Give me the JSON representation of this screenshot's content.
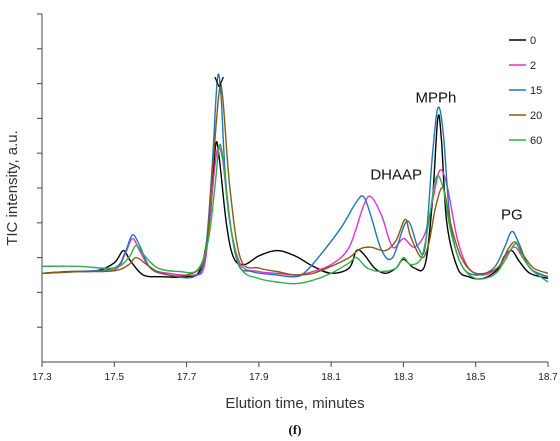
{
  "chart_data": {
    "type": "line",
    "xlabel": "Elution time, minutes",
    "ylabel": "TIC intensity, a.u.",
    "xlim": [
      17.3,
      18.7
    ],
    "x_ticks": [
      "17.3",
      "17.5",
      "17.7",
      "17.9",
      "18.1",
      "18.3",
      "18.5",
      "18.7"
    ],
    "ylim": [
      0,
      10
    ],
    "y_tick_count": 10,
    "panel_label": "(f)",
    "legend_position": "top-right",
    "annotations": [
      {
        "text": "V",
        "x": 17.79,
        "y": 7.9
      },
      {
        "text": "DHAAP",
        "x": 18.28,
        "y": 5.25
      },
      {
        "text": "MPPh",
        "x": 18.39,
        "y": 7.45
      },
      {
        "text": "PG",
        "x": 18.6,
        "y": 4.1
      }
    ],
    "series": [
      {
        "name": "0",
        "color": "#000000",
        "points": [
          [
            17.3,
            2.55
          ],
          [
            17.38,
            2.6
          ],
          [
            17.45,
            2.62
          ],
          [
            17.5,
            2.85
          ],
          [
            17.525,
            3.2
          ],
          [
            17.545,
            2.9
          ],
          [
            17.58,
            2.5
          ],
          [
            17.63,
            2.45
          ],
          [
            17.7,
            2.45
          ],
          [
            17.74,
            2.7
          ],
          [
            17.765,
            4.2
          ],
          [
            17.78,
            6.2
          ],
          [
            17.79,
            5.9
          ],
          [
            17.81,
            4.0
          ],
          [
            17.83,
            3.0
          ],
          [
            17.86,
            2.8
          ],
          [
            17.9,
            3.05
          ],
          [
            17.95,
            3.2
          ],
          [
            18.0,
            3.05
          ],
          [
            18.05,
            2.75
          ],
          [
            18.1,
            2.55
          ],
          [
            18.15,
            2.7
          ],
          [
            18.17,
            3.2
          ],
          [
            18.19,
            3.1
          ],
          [
            18.22,
            2.7
          ],
          [
            18.25,
            2.55
          ],
          [
            18.28,
            2.7
          ],
          [
            18.3,
            2.95
          ],
          [
            18.33,
            2.7
          ],
          [
            18.36,
            2.8
          ],
          [
            18.38,
            4.6
          ],
          [
            18.395,
            7.0
          ],
          [
            18.405,
            6.4
          ],
          [
            18.42,
            4.0
          ],
          [
            18.45,
            2.7
          ],
          [
            18.48,
            2.45
          ],
          [
            18.52,
            2.4
          ],
          [
            18.56,
            2.65
          ],
          [
            18.58,
            3.05
          ],
          [
            18.6,
            3.2
          ],
          [
            18.62,
            2.9
          ],
          [
            18.65,
            2.55
          ],
          [
            18.7,
            2.4
          ]
        ]
      },
      {
        "name": "2",
        "color": "#E62ED1",
        "points": [
          [
            17.3,
            2.55
          ],
          [
            17.4,
            2.6
          ],
          [
            17.5,
            2.65
          ],
          [
            17.53,
            3.1
          ],
          [
            17.55,
            3.55
          ],
          [
            17.57,
            3.2
          ],
          [
            17.6,
            2.7
          ],
          [
            17.65,
            2.55
          ],
          [
            17.72,
            2.5
          ],
          [
            17.75,
            2.8
          ],
          [
            17.77,
            4.8
          ],
          [
            17.785,
            6.1
          ],
          [
            17.8,
            5.8
          ],
          [
            17.82,
            4.0
          ],
          [
            17.85,
            2.8
          ],
          [
            17.9,
            2.6
          ],
          [
            17.95,
            2.55
          ],
          [
            18.0,
            2.5
          ],
          [
            18.05,
            2.6
          ],
          [
            18.1,
            2.8
          ],
          [
            18.15,
            3.3
          ],
          [
            18.19,
            4.5
          ],
          [
            18.21,
            4.75
          ],
          [
            18.24,
            4.2
          ],
          [
            18.27,
            3.3
          ],
          [
            18.3,
            3.55
          ],
          [
            18.33,
            3.3
          ],
          [
            18.36,
            3.7
          ],
          [
            18.38,
            4.6
          ],
          [
            18.4,
            5.5
          ],
          [
            18.42,
            5.1
          ],
          [
            18.45,
            3.5
          ],
          [
            18.48,
            2.7
          ],
          [
            18.52,
            2.5
          ],
          [
            18.56,
            2.7
          ],
          [
            18.59,
            3.15
          ],
          [
            18.61,
            3.3
          ],
          [
            18.63,
            3.0
          ],
          [
            18.66,
            2.6
          ],
          [
            18.7,
            2.45
          ]
        ]
      },
      {
        "name": "15",
        "color": "#1F77B4",
        "points": [
          [
            17.3,
            2.55
          ],
          [
            17.4,
            2.6
          ],
          [
            17.5,
            2.7
          ],
          [
            17.53,
            3.15
          ],
          [
            17.55,
            3.65
          ],
          [
            17.57,
            3.35
          ],
          [
            17.6,
            2.7
          ],
          [
            17.65,
            2.5
          ],
          [
            17.72,
            2.45
          ],
          [
            17.75,
            3.0
          ],
          [
            17.77,
            5.5
          ],
          [
            17.785,
            8.1
          ],
          [
            17.795,
            7.7
          ],
          [
            17.81,
            5.0
          ],
          [
            17.84,
            2.9
          ],
          [
            17.88,
            2.6
          ],
          [
            17.95,
            2.5
          ],
          [
            18.0,
            2.45
          ],
          [
            18.03,
            2.6
          ],
          [
            18.08,
            3.2
          ],
          [
            18.13,
            3.9
          ],
          [
            18.17,
            4.6
          ],
          [
            18.19,
            4.75
          ],
          [
            18.21,
            4.2
          ],
          [
            18.24,
            3.2
          ],
          [
            18.27,
            3.0
          ],
          [
            18.31,
            4.05
          ],
          [
            18.34,
            3.3
          ],
          [
            18.36,
            3.3
          ],
          [
            18.38,
            5.9
          ],
          [
            18.395,
            7.3
          ],
          [
            18.41,
            6.6
          ],
          [
            18.43,
            4.0
          ],
          [
            18.46,
            2.8
          ],
          [
            18.5,
            2.5
          ],
          [
            18.55,
            2.7
          ],
          [
            18.58,
            3.3
          ],
          [
            18.6,
            3.75
          ],
          [
            18.62,
            3.4
          ],
          [
            18.65,
            2.7
          ],
          [
            18.7,
            2.45
          ]
        ]
      },
      {
        "name": "20",
        "color": "#8B5A10",
        "points": [
          [
            17.3,
            2.55
          ],
          [
            17.4,
            2.6
          ],
          [
            17.5,
            2.62
          ],
          [
            17.54,
            2.8
          ],
          [
            17.56,
            3.0
          ],
          [
            17.59,
            2.8
          ],
          [
            17.63,
            2.55
          ],
          [
            17.7,
            2.5
          ],
          [
            17.75,
            3.0
          ],
          [
            17.77,
            5.3
          ],
          [
            17.79,
            7.75
          ],
          [
            17.8,
            7.6
          ],
          [
            17.82,
            5.0
          ],
          [
            17.85,
            2.95
          ],
          [
            17.9,
            2.7
          ],
          [
            17.95,
            2.6
          ],
          [
            18.0,
            2.5
          ],
          [
            18.05,
            2.55
          ],
          [
            18.1,
            2.75
          ],
          [
            18.15,
            3.0
          ],
          [
            18.18,
            3.25
          ],
          [
            18.21,
            3.3
          ],
          [
            18.25,
            3.2
          ],
          [
            18.28,
            3.5
          ],
          [
            18.305,
            4.1
          ],
          [
            18.32,
            3.6
          ],
          [
            18.35,
            3.0
          ],
          [
            18.37,
            3.4
          ],
          [
            18.39,
            4.5
          ],
          [
            18.41,
            5.0
          ],
          [
            18.43,
            4.0
          ],
          [
            18.46,
            3.0
          ],
          [
            18.5,
            2.55
          ],
          [
            18.56,
            2.7
          ],
          [
            18.59,
            3.25
          ],
          [
            18.61,
            3.45
          ],
          [
            18.63,
            3.1
          ],
          [
            18.66,
            2.7
          ],
          [
            18.7,
            2.55
          ]
        ]
      },
      {
        "name": "60",
        "color": "#2CB04A",
        "points": [
          [
            17.3,
            2.75
          ],
          [
            17.4,
            2.75
          ],
          [
            17.5,
            2.7
          ],
          [
            17.54,
            3.0
          ],
          [
            17.56,
            3.35
          ],
          [
            17.58,
            3.1
          ],
          [
            17.62,
            2.7
          ],
          [
            17.68,
            2.6
          ],
          [
            17.73,
            2.65
          ],
          [
            17.76,
            3.5
          ],
          [
            17.78,
            5.2
          ],
          [
            17.79,
            6.2
          ],
          [
            17.8,
            5.9
          ],
          [
            17.82,
            4.0
          ],
          [
            17.85,
            2.7
          ],
          [
            17.9,
            2.4
          ],
          [
            17.95,
            2.3
          ],
          [
            18.0,
            2.25
          ],
          [
            18.05,
            2.35
          ],
          [
            18.1,
            2.55
          ],
          [
            18.15,
            2.85
          ],
          [
            18.17,
            3.0
          ],
          [
            18.2,
            2.7
          ],
          [
            18.24,
            2.6
          ],
          [
            18.28,
            2.7
          ],
          [
            18.3,
            3.0
          ],
          [
            18.32,
            2.8
          ],
          [
            18.35,
            3.0
          ],
          [
            18.37,
            4.0
          ],
          [
            18.39,
            5.3
          ],
          [
            18.41,
            5.0
          ],
          [
            18.43,
            3.8
          ],
          [
            18.46,
            2.8
          ],
          [
            18.5,
            2.4
          ],
          [
            18.55,
            2.5
          ],
          [
            18.58,
            2.9
          ],
          [
            18.61,
            3.4
          ],
          [
            18.63,
            3.0
          ],
          [
            18.66,
            2.6
          ],
          [
            18.7,
            2.3
          ]
        ]
      }
    ]
  }
}
